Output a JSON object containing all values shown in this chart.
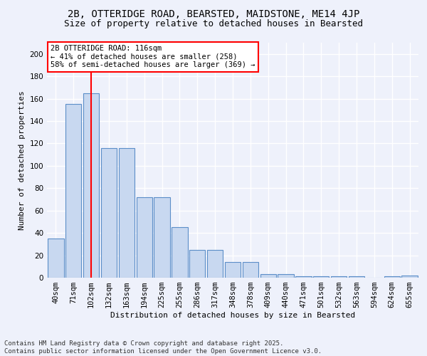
{
  "title_line1": "2B, OTTERIDGE ROAD, BEARSTED, MAIDSTONE, ME14 4JP",
  "title_line2": "Size of property relative to detached houses in Bearsted",
  "xlabel": "Distribution of detached houses by size in Bearsted",
  "ylabel": "Number of detached properties",
  "bar_labels": [
    "40sqm",
    "71sqm",
    "102sqm",
    "132sqm",
    "163sqm",
    "194sqm",
    "225sqm",
    "255sqm",
    "286sqm",
    "317sqm",
    "348sqm",
    "378sqm",
    "409sqm",
    "440sqm",
    "471sqm",
    "501sqm",
    "532sqm",
    "563sqm",
    "594sqm",
    "624sqm",
    "655sqm"
  ],
  "bar_values": [
    35,
    155,
    165,
    116,
    116,
    72,
    72,
    45,
    25,
    25,
    14,
    14,
    3,
    3,
    1,
    1,
    1,
    1,
    0,
    1,
    2
  ],
  "bar_color": "#c8d8f0",
  "bar_edge_color": "#5b8ec8",
  "annotation_text": "2B OTTERIDGE ROAD: 116sqm\n← 41% of detached houses are smaller (258)\n58% of semi-detached houses are larger (369) →",
  "annotation_box_color": "white",
  "annotation_box_edge_color": "red",
  "vline_x": 2,
  "vline_color": "red",
  "ylim": [
    0,
    210
  ],
  "yticks": [
    0,
    20,
    40,
    60,
    80,
    100,
    120,
    140,
    160,
    180,
    200
  ],
  "background_color": "#eef1fb",
  "grid_color": "#ffffff",
  "footer": "Contains HM Land Registry data © Crown copyright and database right 2025.\nContains public sector information licensed under the Open Government Licence v3.0.",
  "title_fontsize": 10,
  "subtitle_fontsize": 9,
  "axis_fontsize": 8,
  "tick_fontsize": 7.5,
  "footer_fontsize": 6.5
}
